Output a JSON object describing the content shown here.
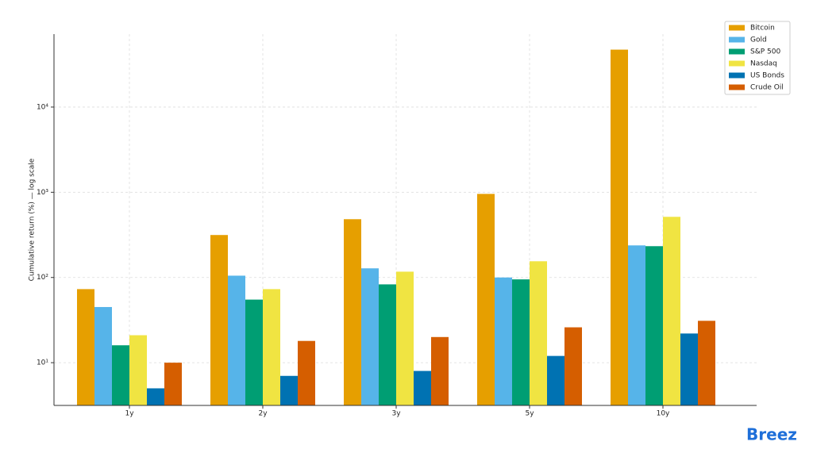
{
  "chart_data": {
    "type": "bar",
    "y_label": "Cumulative return (%) — log scale",
    "categories": [
      "1y",
      "2y",
      "3y",
      "5y",
      "10y"
    ],
    "series": [
      {
        "name": "Bitcoin",
        "color": "#E69F00",
        "values": [
          73,
          315,
          483,
          957,
          47200
        ]
      },
      {
        "name": "Gold",
        "color": "#56B4E9",
        "values": [
          45,
          105,
          128,
          100,
          238
        ]
      },
      {
        "name": "S&P 500",
        "color": "#009E73",
        "values": [
          16,
          55,
          83,
          95,
          233
        ]
      },
      {
        "name": "Nasdaq",
        "color": "#F0E442",
        "values": [
          21,
          73,
          117,
          155,
          515
        ]
      },
      {
        "name": "US Bonds",
        "color": "#0072B2",
        "values": [
          5,
          7,
          8,
          12,
          22
        ]
      },
      {
        "name": "Crude Oil",
        "color": "#D55E00",
        "values": [
          10,
          18,
          20,
          26,
          31
        ]
      }
    ],
    "ylim": [
      3.15,
      71800
    ],
    "yticks": [
      {
        "value": 10,
        "label": "10¹"
      },
      {
        "value": 100,
        "label": "10²"
      },
      {
        "value": 1000,
        "label": "10³"
      },
      {
        "value": 10000,
        "label": "10⁴"
      }
    ],
    "log_y": true,
    "grid": true,
    "legend": "upper right"
  },
  "logo": "Breez"
}
